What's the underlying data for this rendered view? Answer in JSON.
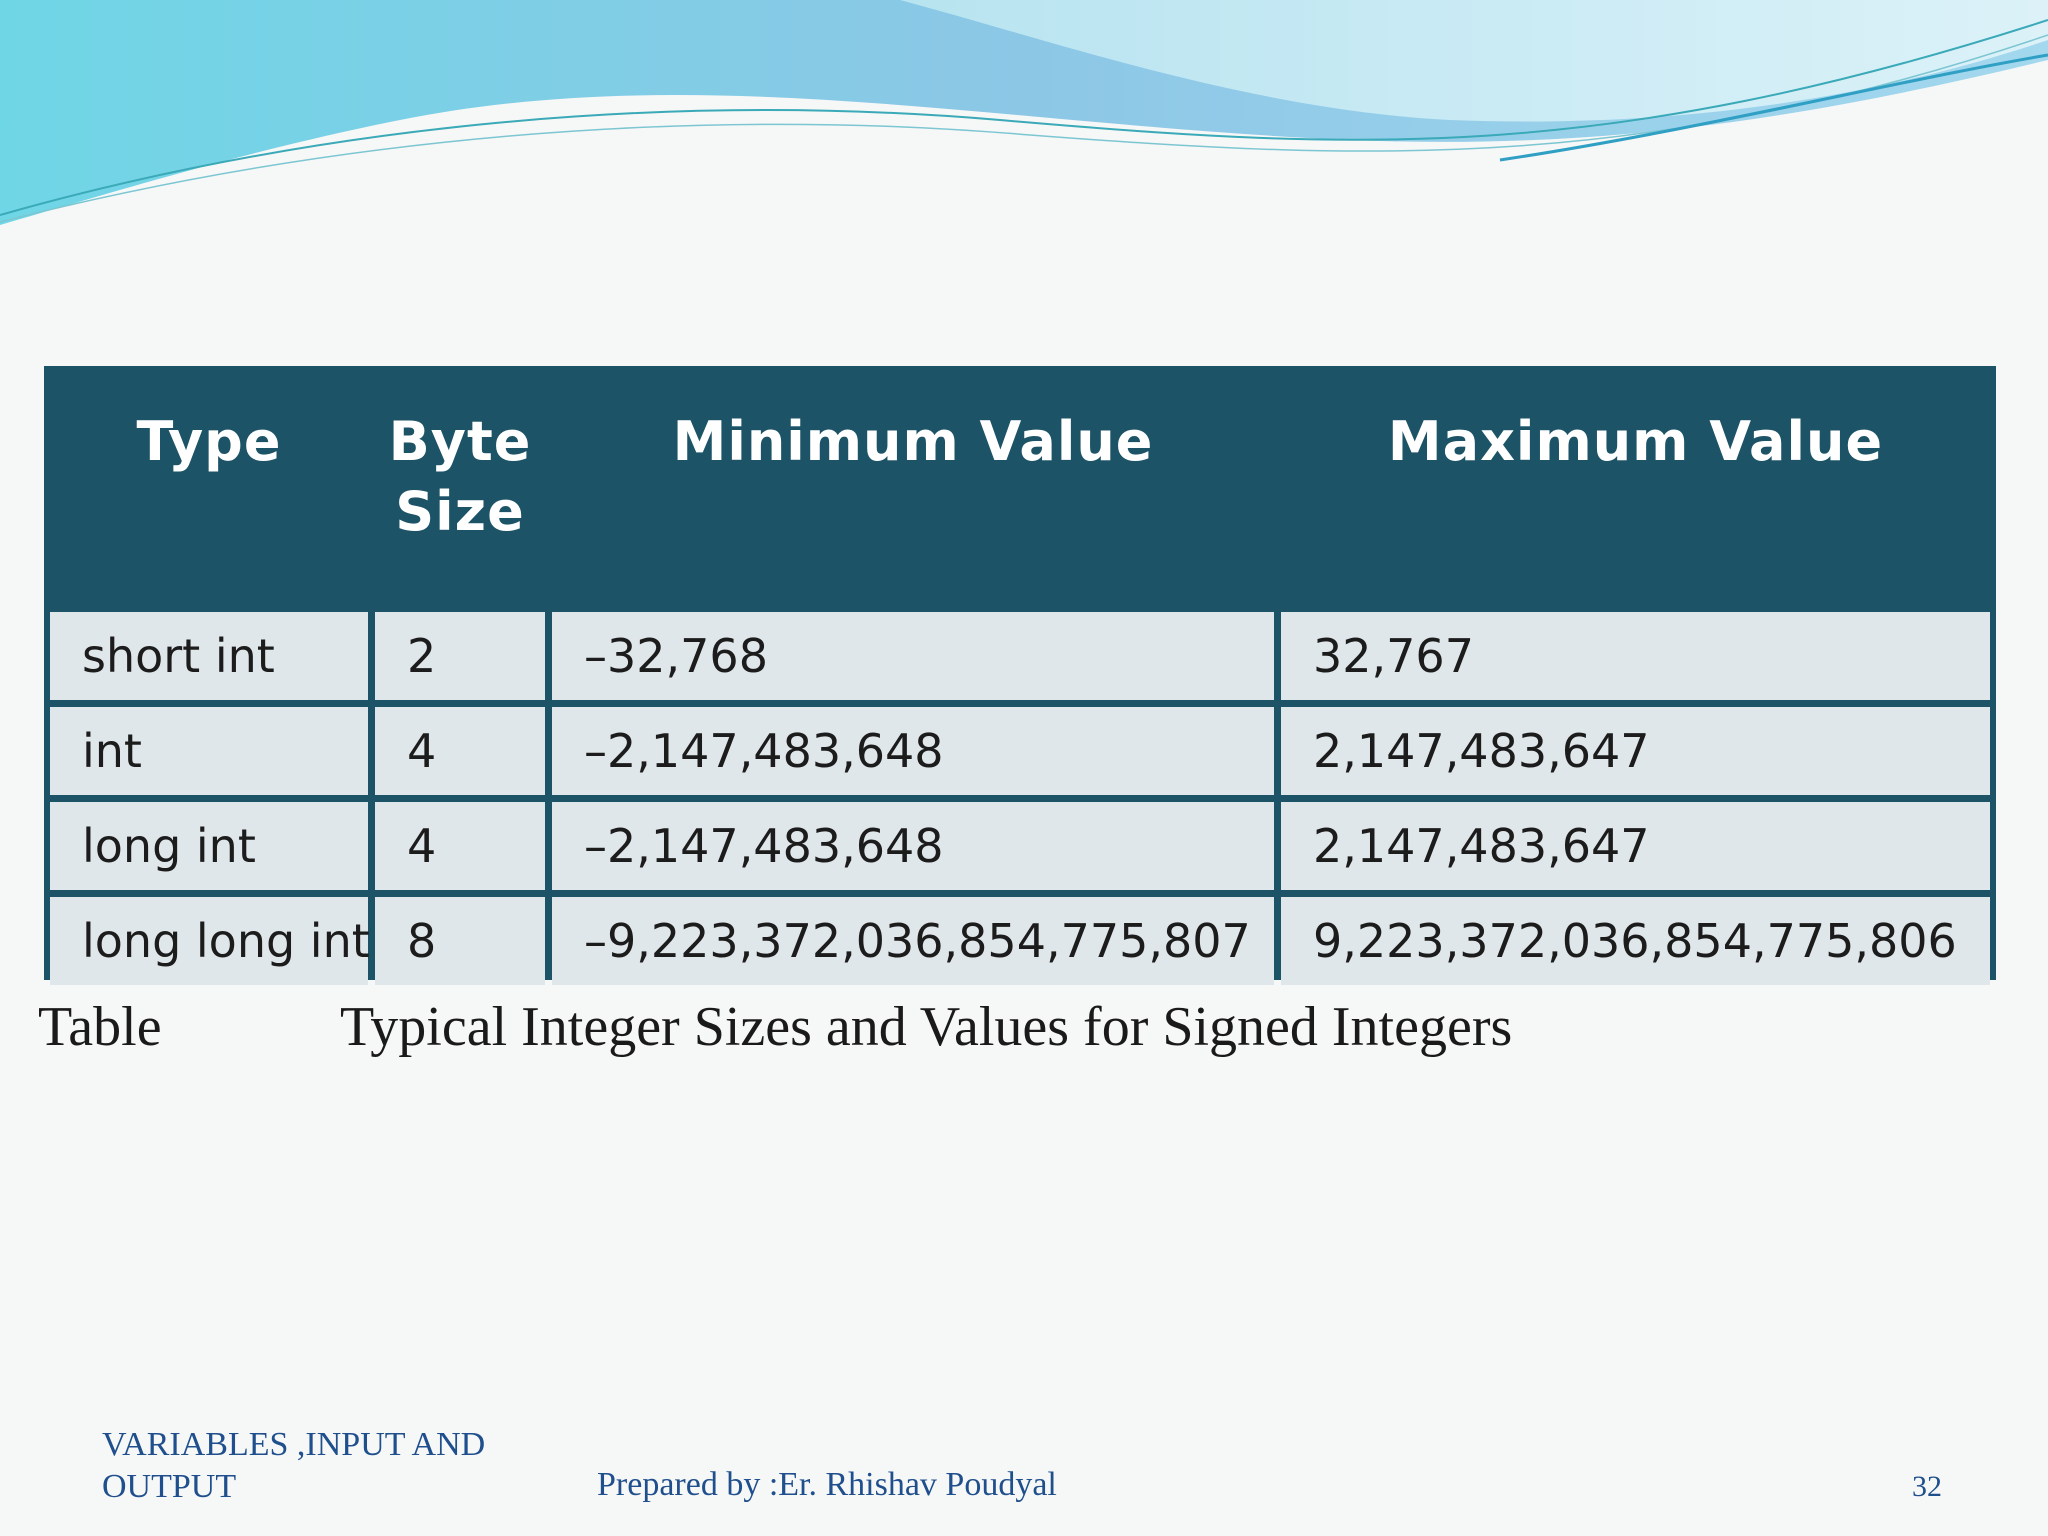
{
  "table": {
    "headers": [
      "Type",
      "Byte\nSize",
      "Minimum Value",
      "Maximum Value"
    ],
    "rows": [
      [
        "short int",
        "2",
        "–32,768",
        "32,767"
      ],
      [
        "int",
        "4",
        "–2,147,483,648",
        "2,147,483,647"
      ],
      [
        "long int",
        "4",
        "–2,147,483,648",
        "2,147,483,647"
      ],
      [
        "long long int",
        "8",
        "–9,223,372,036,854,775,807",
        "9,223,372,036,854,775,806"
      ]
    ]
  },
  "caption": {
    "label": "Table",
    "text": "Typical Integer Sizes and Values for Signed Integers"
  },
  "footer": {
    "left": "VARIABLES ,INPUT AND OUTPUT",
    "center": "Prepared by :Er. Rhishav Poudyal",
    "page": "32"
  },
  "colors": {
    "table_header": "#1c5366",
    "table_cell": "#e0e7eb",
    "footer_text": "#1f4f8c"
  }
}
